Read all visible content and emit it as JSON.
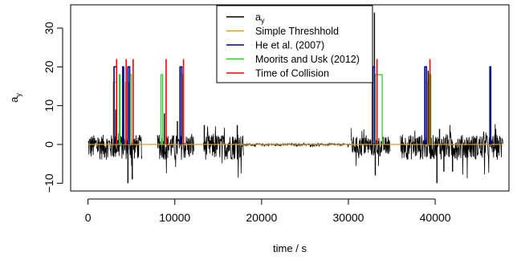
{
  "chart_data": {
    "type": "line",
    "title": "",
    "xlabel": "time / s",
    "ylabel": "a",
    "ylabel_subscript": "y",
    "xlim": [
      -2000,
      48500
    ],
    "ylim": [
      -12,
      36
    ],
    "x_ticks": [
      0,
      10000,
      20000,
      30000,
      40000
    ],
    "y_ticks": [
      -10,
      0,
      10,
      20,
      30
    ],
    "grid": false,
    "legend_position": "top",
    "legend": [
      {
        "label": "a",
        "subscript": "y",
        "color": "#000000"
      },
      {
        "label": "Simple Threshhold",
        "color": "#d4a017"
      },
      {
        "label": "He et al. (2007)",
        "color": "#00008b"
      },
      {
        "label": "Moorits and Usk (2012)",
        "color": "#22cc22"
      },
      {
        "label": "Time of Collision",
        "color": "#ff0000"
      }
    ],
    "signal_segments": [
      {
        "x_start": 0,
        "x_end": 6200,
        "amplitude": 2.5
      },
      {
        "x_start": 8000,
        "x_end": 12200,
        "amplitude": 2.5
      },
      {
        "x_start": 13300,
        "x_end": 17900,
        "amplitude": 2.5
      },
      {
        "x_start": 17900,
        "x_end": 30300,
        "amplitude": 0.2
      },
      {
        "x_start": 30300,
        "x_end": 34800,
        "amplitude": 2.0
      },
      {
        "x_start": 36000,
        "x_end": 47800,
        "amplitude": 2.5
      }
    ],
    "signal_spikes": [
      {
        "x": 3200,
        "y": 9
      },
      {
        "x": 4600,
        "y": -10
      },
      {
        "x": 5100,
        "y": -9
      },
      {
        "x": 8800,
        "y": 8
      },
      {
        "x": 10300,
        "y": 6
      },
      {
        "x": 13400,
        "y": 5
      },
      {
        "x": 17200,
        "y": 5
      },
      {
        "x": 33000,
        "y": 34
      },
      {
        "x": 33100,
        "y": -8
      },
      {
        "x": 39200,
        "y": 19
      },
      {
        "x": 40200,
        "y": -10
      },
      {
        "x": 41000,
        "y": -7
      },
      {
        "x": 42000,
        "y": -7
      },
      {
        "x": 40500,
        "y": 4
      }
    ],
    "detections": {
      "simple_threshold": [
        {
          "x_start": 2900,
          "x_end": 3300,
          "y": 16
        },
        {
          "x_start": 4300,
          "x_end": 4700,
          "y": 16
        },
        {
          "x_start": 10600,
          "x_end": 10900,
          "y": 18
        },
        {
          "x_start": 32700,
          "x_end": 33100,
          "y": 16
        },
        {
          "x_start": 38800,
          "x_end": 39100,
          "y": 16
        }
      ],
      "he_2007": [
        {
          "x_start": 3000,
          "x_end": 3300,
          "y": 20
        },
        {
          "x_start": 4000,
          "x_end": 4100,
          "y": 20
        },
        {
          "x_start": 4600,
          "x_end": 4800,
          "y": 20
        },
        {
          "x_start": 10600,
          "x_end": 10800,
          "y": 20
        },
        {
          "x_start": 32800,
          "x_end": 33000,
          "y": 20
        },
        {
          "x_start": 38800,
          "x_end": 39000,
          "y": 20
        },
        {
          "x_start": 46300,
          "x_end": 46400,
          "y": 20
        }
      ],
      "moorits_usk_2012": [
        {
          "x_start": 3600,
          "x_end": 3700,
          "y": 18
        },
        {
          "x_start": 4800,
          "x_end": 5000,
          "y": 18
        },
        {
          "x_start": 8400,
          "x_end": 8600,
          "y": 18
        },
        {
          "x_start": 33100,
          "x_end": 33900,
          "y": 18
        },
        {
          "x_start": 39300,
          "x_end": 39500,
          "y": 18
        }
      ],
      "time_of_collision": [
        3300,
        4400,
        5200,
        9000,
        11000,
        33300,
        39400
      ]
    }
  }
}
